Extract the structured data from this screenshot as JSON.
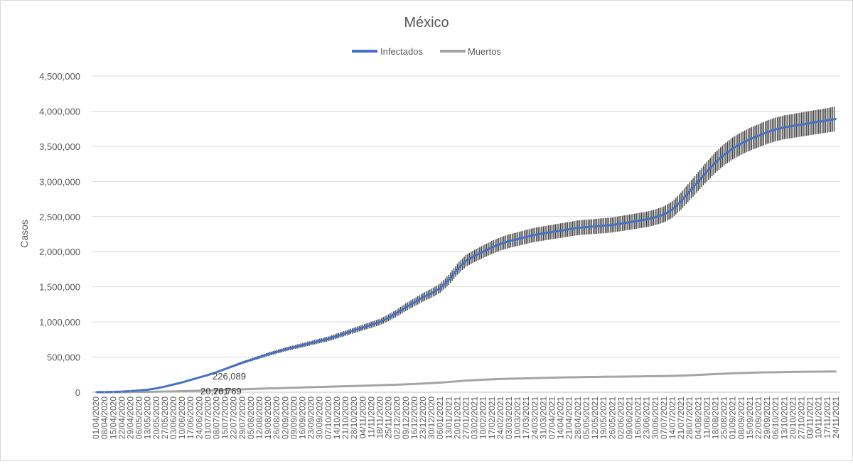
{
  "chart_data": {
    "type": "line",
    "title": "México",
    "xlabel": "",
    "ylabel": "Casos",
    "ylim": [
      0,
      4500000
    ],
    "y_ticks": [
      0,
      500000,
      1000000,
      1500000,
      2000000,
      2500000,
      3000000,
      3500000,
      4000000,
      4500000
    ],
    "y_tick_labels": [
      "0",
      "500,000",
      "1,000,000",
      "1,500,000",
      "2,000,000",
      "2,500,000",
      "3,000,000",
      "3,500,000",
      "4,000,000",
      "4,500,000"
    ],
    "x_tick_labels": [
      "01/04/2020",
      "08/04/2020",
      "15/04/2020",
      "22/04/2020",
      "29/04/2020",
      "06/05/2020",
      "13/05/2020",
      "20/05/2020",
      "27/05/2020",
      "03/06/2020",
      "10/06/2020",
      "17/06/2020",
      "24/06/2020",
      "01/07/2020",
      "08/07/2020",
      "15/07/2020",
      "22/07/2020",
      "29/07/2020",
      "05/08/2020",
      "12/08/2020",
      "19/08/2020",
      "26/08/2020",
      "02/09/2020",
      "09/09/2020",
      "16/09/2020",
      "23/09/2020",
      "30/09/2020",
      "07/10/2020",
      "14/10/2020",
      "21/10/2020",
      "28/10/2020",
      "04/11/2020",
      "11/11/2020",
      "18/11/2020",
      "25/11/2020",
      "02/12/2020",
      "09/12/2020",
      "16/12/2020",
      "23/12/2020",
      "30/12/2020",
      "06/01/2021",
      "13/01/2021",
      "20/01/2021",
      "27/01/2021",
      "03/02/2021",
      "10/02/2021",
      "17/02/2021",
      "24/02/2021",
      "03/03/2021",
      "10/03/2021",
      "17/03/2021",
      "24/03/2021",
      "31/03/2021",
      "07/04/2021",
      "14/04/2021",
      "21/04/2021",
      "28/04/2021",
      "05/05/2021",
      "12/05/2021",
      "19/05/2021",
      "26/05/2021",
      "02/06/2021",
      "09/06/2021",
      "16/06/2021",
      "23/06/2021",
      "30/06/2021",
      "07/07/2021",
      "14/07/2021",
      "21/07/2021",
      "28/07/2021",
      "04/08/2021",
      "11/08/2021",
      "18/08/2021",
      "25/08/2021",
      "01/09/2021",
      "08/09/2021",
      "15/09/2021",
      "22/09/2021",
      "29/09/2021",
      "06/10/2021",
      "13/10/2021",
      "20/10/2021",
      "27/10/2021",
      "03/11/2021",
      "10/11/2021",
      "17/11/2021",
      "24/11/2021"
    ],
    "grid": true,
    "legend_position": "top",
    "series": [
      {
        "name": "Infectados",
        "color": "#4472c4",
        "error_bars": true,
        "error_bar_color": "#404040",
        "values": [
          1000,
          2000,
          5000,
          9000,
          15000,
          25000,
          35000,
          55000,
          80000,
          110000,
          140000,
          175000,
          210000,
          245000,
          285000,
          330000,
          375000,
          420000,
          460000,
          500000,
          540000,
          575000,
          610000,
          640000,
          670000,
          700000,
          730000,
          760000,
          800000,
          840000,
          880000,
          920000,
          960000,
          1000000,
          1060000,
          1130000,
          1210000,
          1280000,
          1350000,
          1410000,
          1480000,
          1600000,
          1750000,
          1870000,
          1940000,
          2000000,
          2060000,
          2110000,
          2150000,
          2180000,
          2210000,
          2240000,
          2260000,
          2280000,
          2300000,
          2320000,
          2340000,
          2350000,
          2360000,
          2370000,
          2380000,
          2400000,
          2420000,
          2440000,
          2460000,
          2490000,
          2530000,
          2600000,
          2720000,
          2860000,
          3000000,
          3140000,
          3270000,
          3380000,
          3470000,
          3540000,
          3600000,
          3650000,
          3700000,
          3740000,
          3770000,
          3790000,
          3810000,
          3830000,
          3850000,
          3870000,
          3890000
        ]
      },
      {
        "name": "Muertos",
        "color": "#a5a5a5",
        "values": [
          50,
          200,
          500,
          1000,
          2000,
          3500,
          5000,
          7000,
          9500,
          12000,
          15000,
          18500,
          22000,
          26000,
          30000,
          34000,
          38000,
          42000,
          46000,
          50000,
          54000,
          57500,
          61000,
          64500,
          68000,
          71500,
          75000,
          78500,
          82000,
          85500,
          89000,
          92500,
          96000,
          100000,
          104000,
          108000,
          113000,
          118000,
          124000,
          130000,
          137000,
          146000,
          156000,
          165000,
          172000,
          178000,
          183000,
          188000,
          192000,
          195000,
          198000,
          201000,
          204000,
          207000,
          210000,
          212000,
          214000,
          216000,
          218000,
          219500,
          221000,
          222500,
          224000,
          225500,
          227000,
          228500,
          230000,
          232000,
          236000,
          241000,
          247000,
          253000,
          259000,
          264000,
          269000,
          273000,
          277000,
          280000,
          283000,
          285000,
          287000,
          289000,
          290500,
          292000,
          293000,
          294500,
          295500
        ]
      }
    ],
    "annotations": [
      "226,089",
      "20,781",
      "20,769"
    ]
  }
}
